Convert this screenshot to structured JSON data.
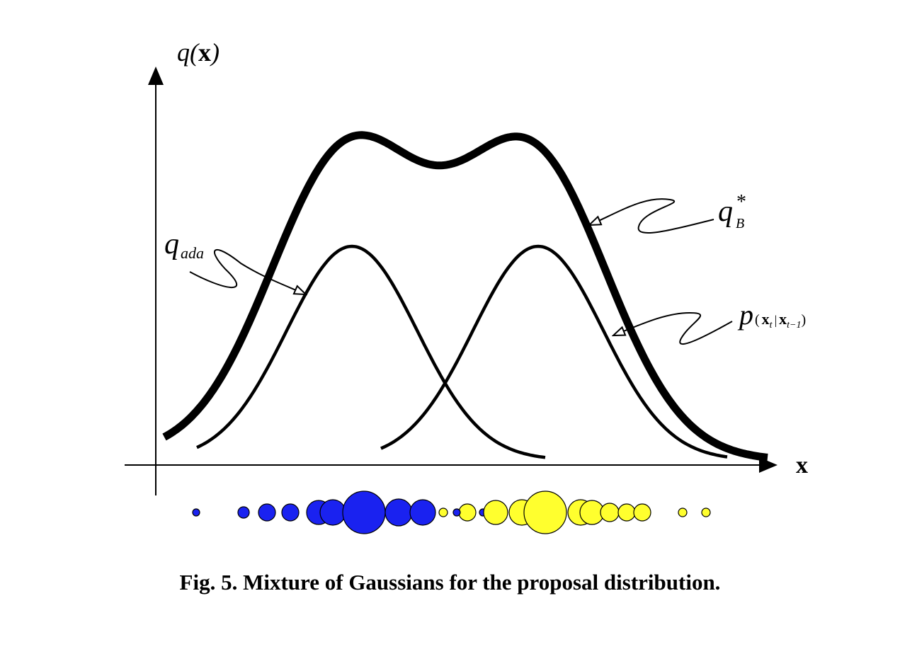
{
  "figure": {
    "y_axis_label": {
      "base": "q",
      "paren_open": "(",
      "var": "x",
      "paren_close": ")"
    },
    "x_axis_label": "x",
    "labels": {
      "q_ada": {
        "base": "q",
        "sub": "ada"
      },
      "q_b_star": {
        "base": "q",
        "sup": "*",
        "sub": "B"
      },
      "transition": {
        "base": "p",
        "open": "(",
        "x1": "x",
        "sub1": "t",
        "bar": "|",
        "x2": "x",
        "sub2": "t−1",
        "close": ")"
      }
    },
    "colors": {
      "curves": "#000000",
      "particles_blue": "#1a22f0",
      "particles_yellow": "#ffff2e",
      "particle_outline": "#000000"
    },
    "particles": {
      "blue_count": 10,
      "yellow_count": 15
    }
  },
  "caption": "Fig. 5. Mixture of Gaussians for the proposal distribution."
}
